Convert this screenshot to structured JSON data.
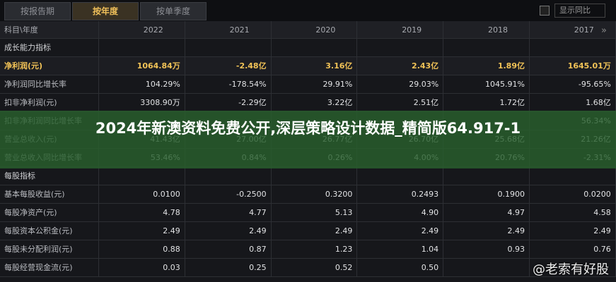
{
  "tabs": [
    "按报告期",
    "按年度",
    "按单季度"
  ],
  "active_tab": 1,
  "checkbox_label": "显示同比",
  "table": {
    "header": [
      "科目\\年度",
      "2022",
      "2021",
      "2020",
      "2019",
      "2018",
      "2017"
    ],
    "rows": [
      {
        "label": "成长能力指标"
      },
      {
        "label": "净利润(元)",
        "highlight": true,
        "cells": [
          "1064.84万",
          "-2.48亿",
          "3.16亿",
          "2.43亿",
          "1.89亿",
          "1645.01万"
        ]
      },
      {
        "label": "净利润同比增长率",
        "cells": [
          "104.29%",
          "-178.54%",
          "29.91%",
          "29.03%",
          "1045.91%",
          "-95.65%"
        ]
      },
      {
        "label": "扣非净利润(元)",
        "cells": [
          "3308.90万",
          "-2.29亿",
          "3.22亿",
          "2.51亿",
          "1.72亿",
          "1.68亿"
        ]
      },
      {
        "label": "扣非净利润同比增长率",
        "cells": [
          null,
          null,
          null,
          null,
          null,
          "56.34%"
        ]
      },
      {
        "label": "营业总收入(元)",
        "cells": [
          "41.43亿",
          "27.00亿",
          "26.77亿",
          "26.70亿",
          "25.68亿",
          "21.26亿"
        ]
      },
      {
        "label": "营业总收入同比增长率",
        "cells": [
          "53.46%",
          "0.84%",
          "0.26%",
          "4.00%",
          "20.76%",
          "-2.31%"
        ]
      },
      {
        "label": "每股指标"
      },
      {
        "label": "基本每股收益(元)",
        "cells": [
          "0.0100",
          "-0.2500",
          "0.3200",
          "0.2493",
          "0.1900",
          "0.0200"
        ]
      },
      {
        "label": "每股净资产(元)",
        "cells": [
          "4.78",
          "4.77",
          "5.13",
          "4.90",
          "4.97",
          "4.58"
        ]
      },
      {
        "label": "每股资本公积金(元)",
        "cells": [
          "2.49",
          "2.49",
          "2.49",
          "2.49",
          "2.49",
          "2.49"
        ]
      },
      {
        "label": "每股未分配利润(元)",
        "cells": [
          "0.88",
          "0.87",
          "1.23",
          "1.04",
          "0.93",
          "0.76"
        ]
      },
      {
        "label": "每股经营现金流(元)",
        "cells": [
          "0.03",
          "0.25",
          "0.52",
          "0.50",
          null,
          null
        ]
      }
    ]
  },
  "banner": "2024年新澳资料免费公开,深层策略设计数据_精简版64.917-1",
  "watermark": "@老索有好股"
}
